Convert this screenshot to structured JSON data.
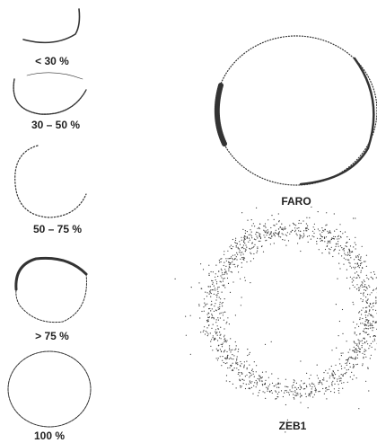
{
  "panels": [
    {
      "label": "< 30 %"
    },
    {
      "label": "30 – 50 %"
    },
    {
      "label": "50 – 75 %"
    },
    {
      "label": "> 75 %"
    },
    {
      "label": "100 %"
    }
  ],
  "scanners": [
    {
      "label": "FARO"
    },
    {
      "label": "ZEB1"
    }
  ]
}
